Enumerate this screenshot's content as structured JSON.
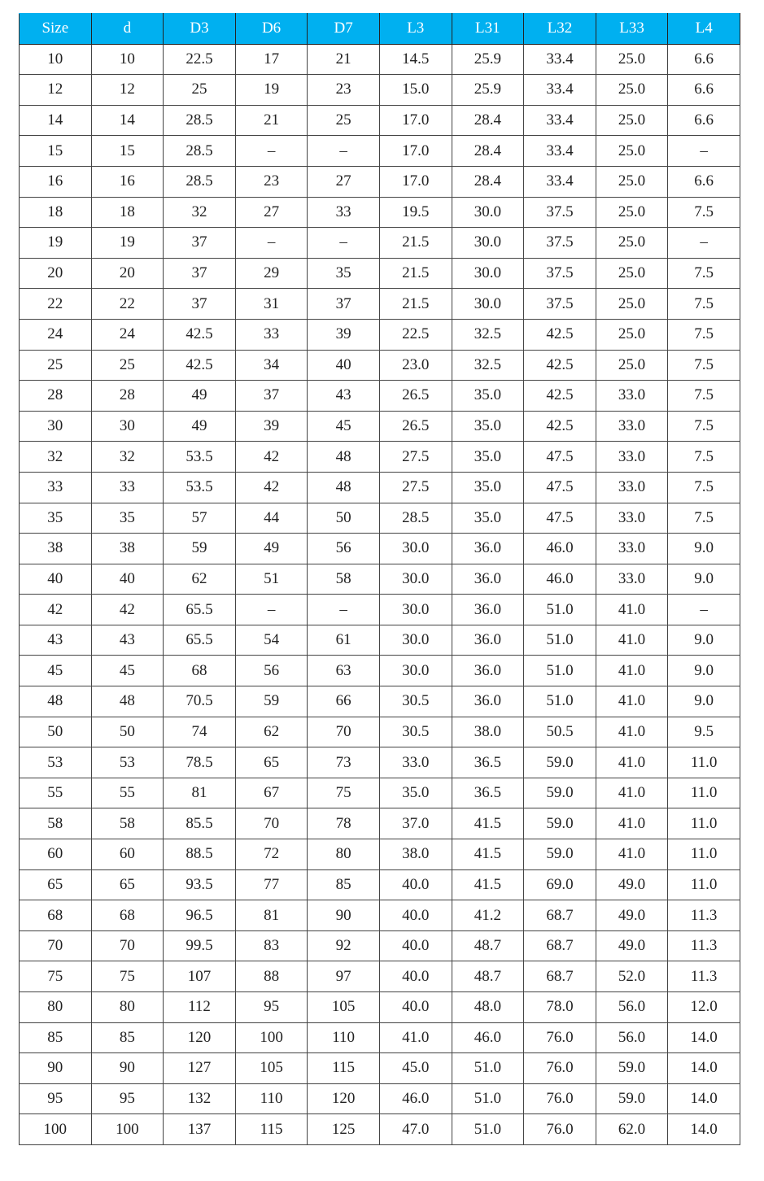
{
  "table": {
    "header_color": "#00b0f0",
    "columns": [
      "Size",
      "d",
      "D3",
      "D6",
      "D7",
      "L3",
      "L31",
      "L32",
      "L33",
      "L4"
    ],
    "rows": [
      [
        "10",
        "10",
        "22.5",
        "17",
        "21",
        "14.5",
        "25.9",
        "33.4",
        "25.0",
        "6.6"
      ],
      [
        "12",
        "12",
        "25",
        "19",
        "23",
        "15.0",
        "25.9",
        "33.4",
        "25.0",
        "6.6"
      ],
      [
        "14",
        "14",
        "28.5",
        "21",
        "25",
        "17.0",
        "28.4",
        "33.4",
        "25.0",
        "6.6"
      ],
      [
        "15",
        "15",
        "28.5",
        "–",
        "–",
        "17.0",
        "28.4",
        "33.4",
        "25.0",
        "–"
      ],
      [
        "16",
        "16",
        "28.5",
        "23",
        "27",
        "17.0",
        "28.4",
        "33.4",
        "25.0",
        "6.6"
      ],
      [
        "18",
        "18",
        "32",
        "27",
        "33",
        "19.5",
        "30.0",
        "37.5",
        "25.0",
        "7.5"
      ],
      [
        "19",
        "19",
        "37",
        "–",
        "–",
        "21.5",
        "30.0",
        "37.5",
        "25.0",
        "–"
      ],
      [
        "20",
        "20",
        "37",
        "29",
        "35",
        "21.5",
        "30.0",
        "37.5",
        "25.0",
        "7.5"
      ],
      [
        "22",
        "22",
        "37",
        "31",
        "37",
        "21.5",
        "30.0",
        "37.5",
        "25.0",
        "7.5"
      ],
      [
        "24",
        "24",
        "42.5",
        "33",
        "39",
        "22.5",
        "32.5",
        "42.5",
        "25.0",
        "7.5"
      ],
      [
        "25",
        "25",
        "42.5",
        "34",
        "40",
        "23.0",
        "32.5",
        "42.5",
        "25.0",
        "7.5"
      ],
      [
        "28",
        "28",
        "49",
        "37",
        "43",
        "26.5",
        "35.0",
        "42.5",
        "33.0",
        "7.5"
      ],
      [
        "30",
        "30",
        "49",
        "39",
        "45",
        "26.5",
        "35.0",
        "42.5",
        "33.0",
        "7.5"
      ],
      [
        "32",
        "32",
        "53.5",
        "42",
        "48",
        "27.5",
        "35.0",
        "47.5",
        "33.0",
        "7.5"
      ],
      [
        "33",
        "33",
        "53.5",
        "42",
        "48",
        "27.5",
        "35.0",
        "47.5",
        "33.0",
        "7.5"
      ],
      [
        "35",
        "35",
        "57",
        "44",
        "50",
        "28.5",
        "35.0",
        "47.5",
        "33.0",
        "7.5"
      ],
      [
        "38",
        "38",
        "59",
        "49",
        "56",
        "30.0",
        "36.0",
        "46.0",
        "33.0",
        "9.0"
      ],
      [
        "40",
        "40",
        "62",
        "51",
        "58",
        "30.0",
        "36.0",
        "46.0",
        "33.0",
        "9.0"
      ],
      [
        "42",
        "42",
        "65.5",
        "–",
        "–",
        "30.0",
        "36.0",
        "51.0",
        "41.0",
        "–"
      ],
      [
        "43",
        "43",
        "65.5",
        "54",
        "61",
        "30.0",
        "36.0",
        "51.0",
        "41.0",
        "9.0"
      ],
      [
        "45",
        "45",
        "68",
        "56",
        "63",
        "30.0",
        "36.0",
        "51.0",
        "41.0",
        "9.0"
      ],
      [
        "48",
        "48",
        "70.5",
        "59",
        "66",
        "30.5",
        "36.0",
        "51.0",
        "41.0",
        "9.0"
      ],
      [
        "50",
        "50",
        "74",
        "62",
        "70",
        "30.5",
        "38.0",
        "50.5",
        "41.0",
        "9.5"
      ],
      [
        "53",
        "53",
        "78.5",
        "65",
        "73",
        "33.0",
        "36.5",
        "59.0",
        "41.0",
        "11.0"
      ],
      [
        "55",
        "55",
        "81",
        "67",
        "75",
        "35.0",
        "36.5",
        "59.0",
        "41.0",
        "11.0"
      ],
      [
        "58",
        "58",
        "85.5",
        "70",
        "78",
        "37.0",
        "41.5",
        "59.0",
        "41.0",
        "11.0"
      ],
      [
        "60",
        "60",
        "88.5",
        "72",
        "80",
        "38.0",
        "41.5",
        "59.0",
        "41.0",
        "11.0"
      ],
      [
        "65",
        "65",
        "93.5",
        "77",
        "85",
        "40.0",
        "41.5",
        "69.0",
        "49.0",
        "11.0"
      ],
      [
        "68",
        "68",
        "96.5",
        "81",
        "90",
        "40.0",
        "41.2",
        "68.7",
        "49.0",
        "11.3"
      ],
      [
        "70",
        "70",
        "99.5",
        "83",
        "92",
        "40.0",
        "48.7",
        "68.7",
        "49.0",
        "11.3"
      ],
      [
        "75",
        "75",
        "107",
        "88",
        "97",
        "40.0",
        "48.7",
        "68.7",
        "52.0",
        "11.3"
      ],
      [
        "80",
        "80",
        "112",
        "95",
        "105",
        "40.0",
        "48.0",
        "78.0",
        "56.0",
        "12.0"
      ],
      [
        "85",
        "85",
        "120",
        "100",
        "110",
        "41.0",
        "46.0",
        "76.0",
        "56.0",
        "14.0"
      ],
      [
        "90",
        "90",
        "127",
        "105",
        "115",
        "45.0",
        "51.0",
        "76.0",
        "59.0",
        "14.0"
      ],
      [
        "95",
        "95",
        "132",
        "110",
        "120",
        "46.0",
        "51.0",
        "76.0",
        "59.0",
        "14.0"
      ],
      [
        "100",
        "100",
        "137",
        "115",
        "125",
        "47.0",
        "51.0",
        "76.0",
        "62.0",
        "14.0"
      ]
    ]
  }
}
